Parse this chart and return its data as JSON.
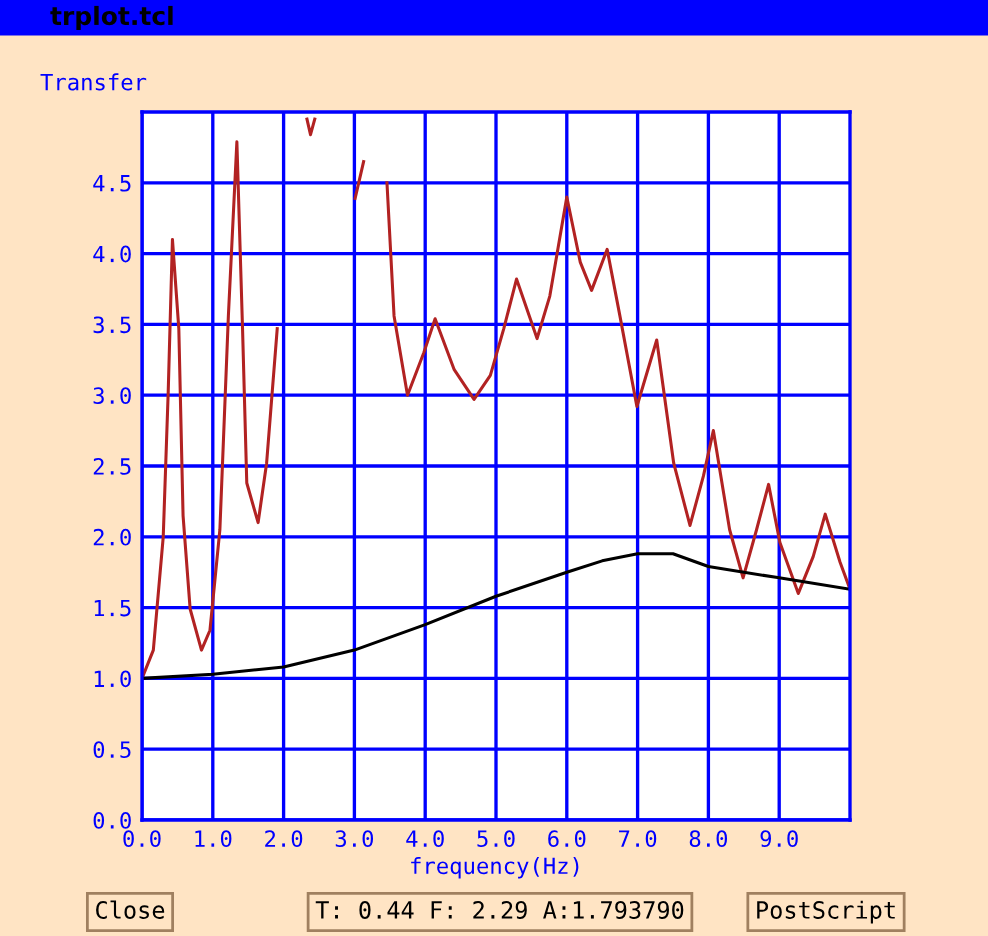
{
  "chart_data": {
    "type": "line",
    "ylabel": "Transfer",
    "xlabel": "frequency(Hz)",
    "annotations": [
      "trplot.tcl",
      "Close",
      "T: 0.44 F: 2.29 A:1.793790",
      "PostScript"
    ],
    "xlim": [
      0,
      10
    ],
    "ylim": [
      0,
      5
    ],
    "xticks": [
      {
        "value": 0,
        "label": "0.0"
      },
      {
        "value": 1,
        "label": "1.0"
      },
      {
        "value": 2,
        "label": "2.0"
      },
      {
        "value": 3,
        "label": "3.0"
      },
      {
        "value": 4,
        "label": "4.0"
      },
      {
        "value": 5,
        "label": "5.0"
      },
      {
        "value": 6,
        "label": "6.0"
      },
      {
        "value": 7,
        "label": "7.0"
      },
      {
        "value": 8,
        "label": "8.0"
      },
      {
        "value": 9,
        "label": "9.0"
      }
    ],
    "yticks": [
      {
        "value": 0,
        "label": "0.0"
      },
      {
        "value": 0.5,
        "label": "0.5"
      },
      {
        "value": 1,
        "label": "1.0"
      },
      {
        "value": 1.5,
        "label": "1.5"
      },
      {
        "value": 2,
        "label": "2.0"
      },
      {
        "value": 2.5,
        "label": "2.5"
      },
      {
        "value": 3,
        "label": "3.0"
      },
      {
        "value": 3.5,
        "label": "3.5"
      },
      {
        "value": 4,
        "label": "4.0"
      },
      {
        "value": 4.5,
        "label": "4.5"
      }
    ],
    "grid": true,
    "legend": false,
    "line_style": "solid",
    "series": [
      {
        "color": "#b22222",
        "x": [
          0,
          0.16,
          0.3,
          0.37,
          0.43,
          0.52,
          0.58,
          0.68,
          0.84,
          0.96,
          1.1,
          1.22,
          1.34,
          1.42,
          1.48,
          1.64,
          1.76,
          1.91,
          1.98,
          2.33,
          2.38,
          2.44,
          2.8,
          3.01,
          3.13,
          3.23,
          3.35,
          3.46,
          3.56,
          3.75,
          3.98,
          4.14,
          4.41,
          4.69,
          4.92,
          5.11,
          5.29,
          5.58,
          5.76,
          6.0,
          6.19,
          6.35,
          6.57,
          6.75,
          6.99,
          7.27,
          7.51,
          7.74,
          7.93,
          8.07,
          8.3,
          8.49,
          8.68,
          8.85,
          9.01,
          9.27,
          9.48,
          9.65,
          9.86,
          10.0
        ],
        "values": [
          1.0,
          1.2,
          2.0,
          3.02,
          4.1,
          3.47,
          2.15,
          1.49,
          1.2,
          1.34,
          2.05,
          3.56,
          4.79,
          3.47,
          2.38,
          2.1,
          2.52,
          3.47,
          null,
          4.95,
          4.84,
          4.95,
          null,
          4.39,
          4.65,
          null,
          null,
          4.5,
          3.56,
          3.0,
          3.3,
          3.54,
          3.18,
          2.97,
          3.14,
          3.47,
          3.82,
          3.4,
          3.7,
          4.4,
          3.94,
          3.74,
          4.03,
          3.56,
          2.92,
          3.39,
          2.52,
          2.08,
          2.43,
          2.75,
          2.05,
          1.71,
          2.05,
          2.37,
          1.96,
          1.6,
          1.86,
          2.16,
          1.82,
          1.63
        ]
      },
      {
        "color": "#000000",
        "x": [
          0,
          1,
          2,
          3,
          4,
          5,
          6,
          6.5,
          7,
          7.5,
          8,
          9,
          10
        ],
        "values": [
          1.0,
          1.03,
          1.08,
          1.2,
          1.38,
          1.58,
          1.75,
          1.83,
          1.88,
          1.88,
          1.79,
          1.71,
          1.63
        ]
      }
    ]
  }
}
